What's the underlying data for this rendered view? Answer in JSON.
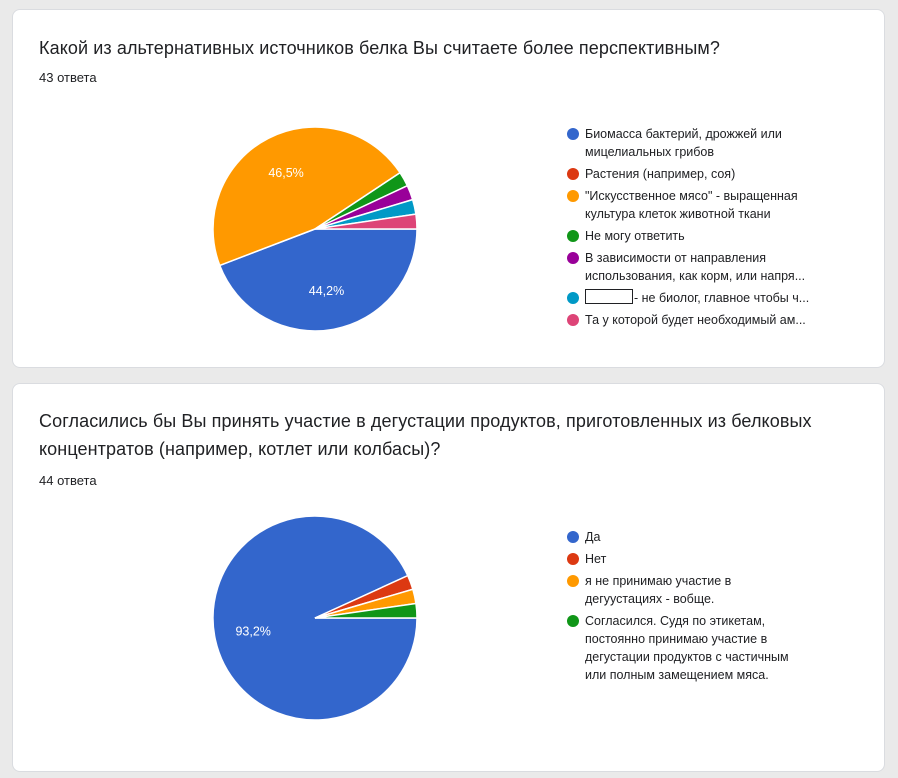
{
  "questions": [
    {
      "title": "Какой из альтернативных источников белка Вы считаете более перспективным?",
      "response_count": "43 ответа",
      "legend": [
        {
          "lines": [
            "Биомасса бактерий, дрожжей или",
            "мицелиальных грибов"
          ]
        },
        {
          "lines": [
            "Растения (например, соя)"
          ]
        },
        {
          "lines": [
            "\"Искусственное мясо\" - выращенная",
            "культура клеток животной ткани"
          ]
        },
        {
          "lines": [
            "Не могу ответить"
          ]
        },
        {
          "lines": [
            "В зависимости от направления",
            "использования, как корм, или напря..."
          ]
        },
        {
          "lines": [
            "- не биолог, главное чтобы ч..."
          ],
          "redacted_prefix": true
        },
        {
          "lines": [
            "Та у которой будет необходимый ам..."
          ]
        }
      ]
    },
    {
      "title": "Согласились бы Вы принять участие в дегустации продуктов, приготовленных из белковых концентратов (например, котлет или колбасы)?",
      "response_count": "44 ответа",
      "legend": [
        {
          "lines": [
            "Да"
          ]
        },
        {
          "lines": [
            "Нет"
          ]
        },
        {
          "lines": [
            "я не принимаю участие в",
            "дегуустациях - вобще."
          ]
        },
        {
          "lines": [
            "Согласился. Судя по этикетам,",
            "постоянно принимаю участие в",
            "дегустации продуктов с частичным",
            "или полным замещением мяса."
          ]
        }
      ]
    }
  ],
  "chart_data": [
    {
      "type": "pie",
      "total": 43,
      "categories": [
        "Биомасса бактерий, дрожжей или мицелиальных грибов",
        "Растения (например, соя)",
        "\"Искусственное мясо\" - выращенная культура клеток животной ткани",
        "Не могу ответить",
        "В зависимости от направления использования, как корм, или напря...",
        "- не биолог, главное чтобы ч...",
        "Та у которой будет необходимый ам..."
      ],
      "values": [
        19,
        0,
        20,
        1,
        1,
        1,
        1
      ],
      "data_labels": [
        "44,2%",
        "",
        "46,5%",
        "",
        "",
        "",
        ""
      ],
      "colors": [
        "#3366cc",
        "#dc3912",
        "#ff9900",
        "#109618",
        "#990099",
        "#0099c6",
        "#dd4477"
      ],
      "legend_position": "right"
    },
    {
      "type": "pie",
      "total": 44,
      "categories": [
        "Да",
        "Нет",
        "я не принимаю участие в дегуустациях - вобще.",
        "Согласился. Судя по этикетам, постоянно принимаю участие в дегустации продуктов с частичным или полным замещением мяса."
      ],
      "values": [
        41,
        1,
        1,
        1
      ],
      "data_labels": [
        "93,2%",
        "",
        "",
        ""
      ],
      "colors": [
        "#3366cc",
        "#dc3912",
        "#ff9900",
        "#109618"
      ],
      "legend_position": "right"
    }
  ]
}
